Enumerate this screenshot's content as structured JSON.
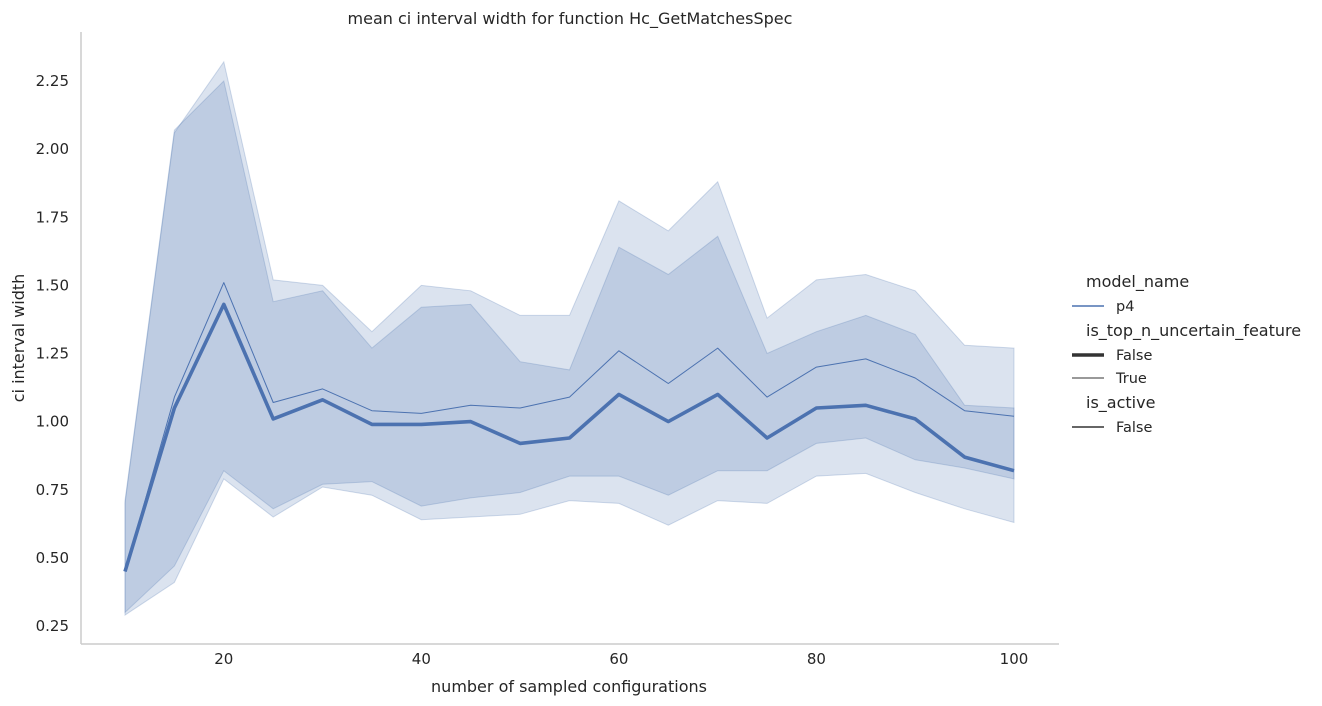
{
  "chart_data": {
    "type": "line",
    "title": "mean ci interval width for function Hc_GetMatchesSpec",
    "xlabel": "number of sampled configurations",
    "ylabel": "ci interval width",
    "xlim": [
      6,
      105
    ],
    "ylim": [
      0.18,
      2.4
    ],
    "xticks": [
      20,
      40,
      60,
      80,
      100
    ],
    "yticks": [
      0.25,
      0.5,
      0.75,
      1.0,
      1.25,
      1.5,
      1.75,
      2.0,
      2.25
    ],
    "yticks_labels": [
      "0.25",
      "0.50",
      "0.75",
      "1.00",
      "1.25",
      "1.50",
      "1.75",
      "2.00",
      "2.25"
    ],
    "grid": false,
    "legend_placement": "right",
    "color": "#4c72b0",
    "x": [
      10,
      15,
      20,
      25,
      30,
      35,
      40,
      45,
      50,
      55,
      60,
      65,
      70,
      75,
      80,
      85,
      90,
      95,
      100
    ],
    "series": [
      {
        "name": "False",
        "linewidth": "thick",
        "values": [
          0.45,
          1.05,
          1.43,
          1.01,
          1.08,
          0.99,
          0.99,
          1.0,
          0.92,
          0.94,
          1.1,
          1.0,
          1.1,
          0.94,
          1.05,
          1.06,
          1.01,
          0.87,
          0.82
        ],
        "ci_upper": [
          0.71,
          2.07,
          2.25,
          1.44,
          1.48,
          1.27,
          1.42,
          1.43,
          1.22,
          1.19,
          1.64,
          1.54,
          1.68,
          1.25,
          1.33,
          1.39,
          1.32,
          1.06,
          1.05
        ],
        "ci_lower": [
          0.3,
          0.47,
          0.82,
          0.68,
          0.77,
          0.78,
          0.69,
          0.72,
          0.74,
          0.8,
          0.8,
          0.73,
          0.82,
          0.82,
          0.92,
          0.94,
          0.86,
          0.83,
          0.79
        ]
      },
      {
        "name": "True",
        "linewidth": "thin",
        "values": [
          0.45,
          1.09,
          1.51,
          1.07,
          1.12,
          1.04,
          1.03,
          1.06,
          1.05,
          1.09,
          1.26,
          1.14,
          1.27,
          1.09,
          1.2,
          1.23,
          1.16,
          1.04,
          1.02
        ],
        "ci_upper": [
          0.7,
          2.06,
          2.32,
          1.52,
          1.5,
          1.33,
          1.5,
          1.48,
          1.39,
          1.39,
          1.81,
          1.7,
          1.88,
          1.38,
          1.52,
          1.54,
          1.48,
          1.28,
          1.27
        ],
        "ci_lower": [
          0.29,
          0.41,
          0.79,
          0.65,
          0.76,
          0.73,
          0.64,
          0.65,
          0.66,
          0.71,
          0.7,
          0.62,
          0.71,
          0.7,
          0.8,
          0.81,
          0.74,
          0.68,
          0.63
        ]
      }
    ],
    "legend": {
      "sections": [
        {
          "title": "model_name",
          "entries": [
            {
              "label": "p4",
              "style": "hue"
            }
          ]
        },
        {
          "title": "is_top_n_uncertain_feature",
          "entries": [
            {
              "label": "False",
              "style": "thick"
            },
            {
              "label": "True",
              "style": "thin"
            }
          ]
        },
        {
          "title": "is_active",
          "entries": [
            {
              "label": "False",
              "style": "dark"
            }
          ]
        }
      ]
    }
  }
}
